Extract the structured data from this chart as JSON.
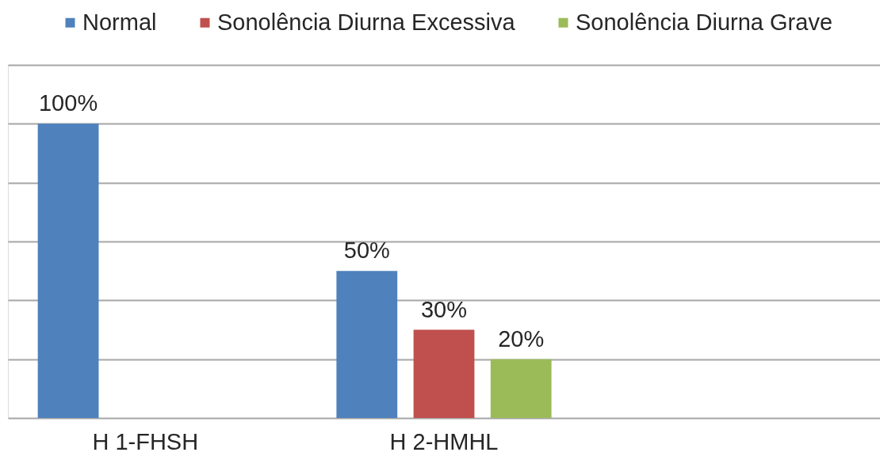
{
  "chart_data": {
    "type": "bar",
    "categories": [
      "H 1-FHSH",
      "H 2-HMHL",
      null
    ],
    "series": [
      {
        "name": "Normal",
        "color": "#4f81bd",
        "values": [
          100,
          50,
          null
        ],
        "value_labels": [
          "100%",
          "50%",
          null
        ]
      },
      {
        "name": "Sonolência Diurna Excessiva",
        "color": "#c0504d",
        "values": [
          null,
          30,
          null
        ],
        "value_labels": [
          null,
          "30%",
          null
        ]
      },
      {
        "name": "Sonolência Diurna Grave",
        "color": "#9bbb59",
        "values": [
          null,
          20,
          null
        ],
        "value_labels": [
          null,
          "20%",
          null
        ]
      }
    ],
    "ylim": [
      0,
      120
    ],
    "yticks": [
      {
        "value": 0,
        "label": null
      },
      {
        "value": 20,
        "label": null
      },
      {
        "value": 40,
        "label": null
      },
      {
        "value": 60,
        "label": null
      },
      {
        "value": 80,
        "label": null
      },
      {
        "value": 100,
        "label": null
      },
      {
        "value": 120,
        "label": null
      }
    ],
    "grid": "y",
    "legend": "top",
    "tick_labels": "x"
  }
}
